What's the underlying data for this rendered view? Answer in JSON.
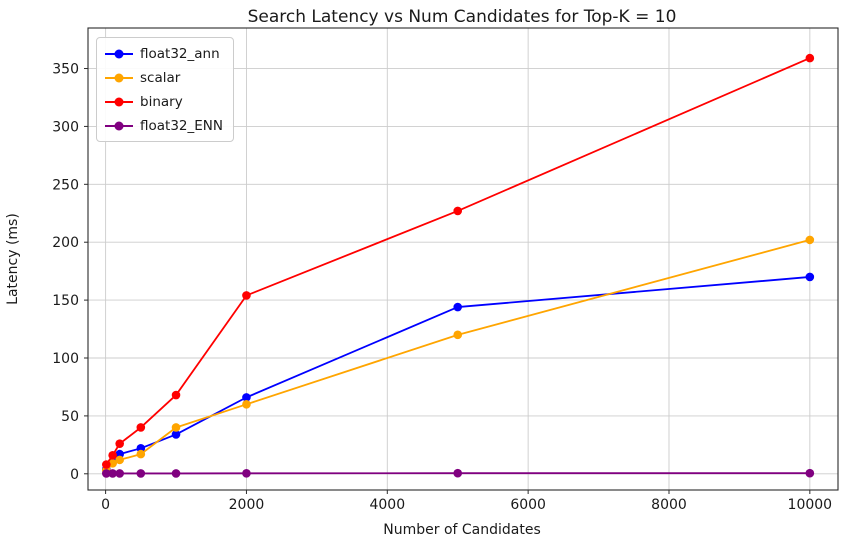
{
  "title": "Search Latency vs Num Candidates for Top-K = 10",
  "chart_data": {
    "type": "line",
    "title": "Search Latency vs Num Candidates for Top-K = 10",
    "xlabel": "Number of Candidates",
    "ylabel": "Latency (ms)",
    "x": [
      10,
      100,
      200,
      500,
      1000,
      2000,
      5000,
      10000
    ],
    "series": [
      {
        "name": "float32_ann",
        "color": "#0000ff",
        "values": [
          4,
          10,
          17,
          22,
          34,
          66,
          144,
          170
        ]
      },
      {
        "name": "scalar",
        "color": "#ffa500",
        "values": [
          3,
          9,
          12,
          17,
          40,
          60,
          120,
          202
        ]
      },
      {
        "name": "binary",
        "color": "#ff0000",
        "values": [
          8,
          16,
          26,
          40,
          68,
          154,
          227,
          359
        ]
      },
      {
        "name": "float32_ENN",
        "color": "#800080",
        "values": [
          0.3,
          0.3,
          0.3,
          0.3,
          0.3,
          0.4,
          0.5,
          0.5
        ]
      }
    ],
    "xticks": [
      0,
      2000,
      4000,
      6000,
      8000,
      10000
    ],
    "yticks": [
      0,
      50,
      100,
      150,
      200,
      250,
      300,
      350
    ],
    "xlim": [
      -250,
      10400
    ],
    "ylim": [
      -14,
      385
    ],
    "grid": true,
    "legend_position": "upper left",
    "grid_color": "#cccccc",
    "spine_color": "#2b2b2b",
    "tick_label_color": "#1a1a1a"
  }
}
